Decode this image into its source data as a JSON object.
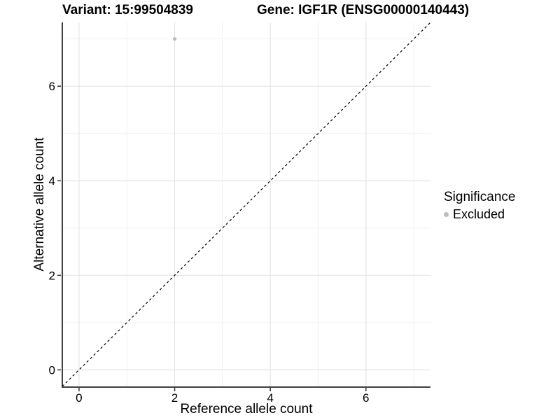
{
  "figure": {
    "header": {
      "variant_label": "Variant: 15:99504839",
      "gene_label": "Gene: IGF1R (ENSG00000140443)"
    },
    "chart_data": {
      "type": "scatter",
      "title": "Variant: 15:99504839    Gene: IGF1R (ENSG00000140443)",
      "xlabel": "Reference allele count",
      "ylabel": "Alternative allele count",
      "xlim": [
        -0.35,
        7.35
      ],
      "ylim": [
        -0.35,
        7.35
      ],
      "x_ticks": [
        0,
        2,
        4,
        6
      ],
      "y_ticks": [
        0,
        2,
        4,
        6
      ],
      "x_minor_ticks": [
        1,
        3,
        5,
        7
      ],
      "y_minor_ticks": [
        1,
        3,
        5,
        7
      ],
      "grid": true,
      "points": [
        {
          "x": 2,
          "y": 7,
          "series": "Excluded"
        }
      ],
      "reference_line": {
        "slope": 1,
        "intercept": 0,
        "style": "dashed"
      },
      "legend": {
        "title": "Significance",
        "position": "right",
        "items": [
          {
            "label": "Excluded",
            "color": "#bdbdbd"
          }
        ]
      }
    },
    "colors": {
      "background": "#ffffff",
      "point": "#bdbdbd",
      "grid_major": "#e4e4e4",
      "grid_minor": "#f1f1f1",
      "axis": "#404040",
      "dashed_line": "#000000",
      "text": "#000000"
    }
  }
}
